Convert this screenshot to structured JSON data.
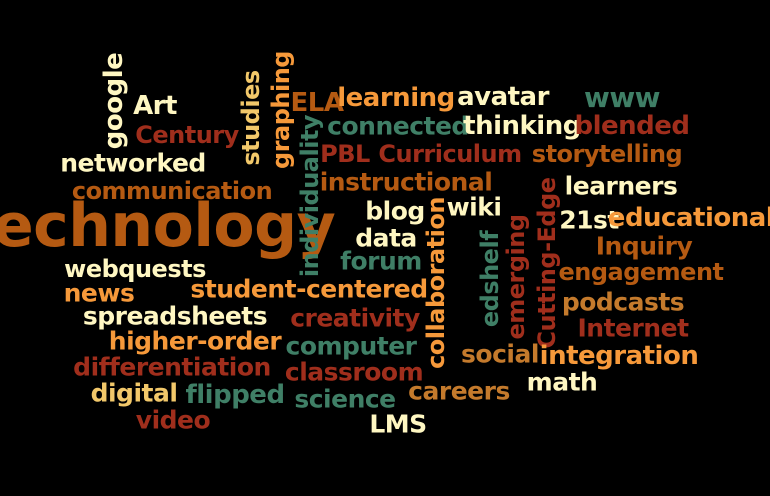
{
  "palette": {
    "orange": "#f6993a",
    "dark_orange": "#b55a12",
    "cream": "#fff7c2",
    "green": "#3f7f66",
    "red": "#a02e1c",
    "gold": "#f2c86a",
    "tan": "#c47a2c"
  },
  "words": [
    {
      "text": "technology",
      "color": "dark_orange"
    },
    {
      "text": "google",
      "color": "cream"
    },
    {
      "text": "Art",
      "color": "cream"
    },
    {
      "text": "Century",
      "color": "red"
    },
    {
      "text": "studies",
      "color": "gold"
    },
    {
      "text": "graphing",
      "color": "orange"
    },
    {
      "text": "ELA",
      "color": "dark_orange"
    },
    {
      "text": "learning",
      "color": "orange"
    },
    {
      "text": "avatar",
      "color": "cream"
    },
    {
      "text": "www",
      "color": "green"
    },
    {
      "text": "individuality",
      "color": "green"
    },
    {
      "text": "connected",
      "color": "green"
    },
    {
      "text": "thinking",
      "color": "cream"
    },
    {
      "text": "blended",
      "color": "red"
    },
    {
      "text": "networked",
      "color": "cream"
    },
    {
      "text": "PBL",
      "color": "red"
    },
    {
      "text": "Curriculum",
      "color": "red"
    },
    {
      "text": "storytelling",
      "color": "dark_orange"
    },
    {
      "text": "communication",
      "color": "dark_orange"
    },
    {
      "text": "instructional",
      "color": "dark_orange"
    },
    {
      "text": "learners",
      "color": "cream"
    },
    {
      "text": "blog",
      "color": "cream"
    },
    {
      "text": "collaboration",
      "color": "orange"
    },
    {
      "text": "wiki",
      "color": "cream"
    },
    {
      "text": "edshelf",
      "color": "green"
    },
    {
      "text": "emerging",
      "color": "red"
    },
    {
      "text": "Cutting-Edge",
      "color": "red"
    },
    {
      "text": "21st",
      "color": "cream"
    },
    {
      "text": "educational",
      "color": "orange"
    },
    {
      "text": "data",
      "color": "cream"
    },
    {
      "text": "Inquiry",
      "color": "dark_orange"
    },
    {
      "text": "forum",
      "color": "green"
    },
    {
      "text": "webquests",
      "color": "cream"
    },
    {
      "text": "engagement",
      "color": "dark_orange"
    },
    {
      "text": "news",
      "color": "orange"
    },
    {
      "text": "student-centered",
      "color": "orange"
    },
    {
      "text": "podcasts",
      "color": "tan"
    },
    {
      "text": "spreadsheets",
      "color": "cream"
    },
    {
      "text": "creativity",
      "color": "red"
    },
    {
      "text": "Internet",
      "color": "red"
    },
    {
      "text": "higher-order",
      "color": "orange"
    },
    {
      "text": "computer",
      "color": "green"
    },
    {
      "text": "social",
      "color": "tan"
    },
    {
      "text": "integration",
      "color": "orange"
    },
    {
      "text": "differentiation",
      "color": "red"
    },
    {
      "text": "classroom",
      "color": "red"
    },
    {
      "text": "math",
      "color": "cream"
    },
    {
      "text": "digital",
      "color": "gold"
    },
    {
      "text": "flipped",
      "color": "green"
    },
    {
      "text": "science",
      "color": "green"
    },
    {
      "text": "careers",
      "color": "tan"
    },
    {
      "text": "video",
      "color": "red"
    },
    {
      "text": "LMS",
      "color": "cream"
    }
  ]
}
